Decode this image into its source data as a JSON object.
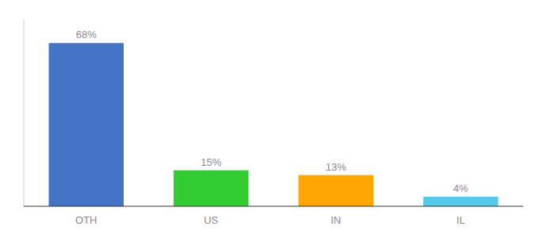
{
  "chart_data": {
    "type": "bar",
    "categories": [
      "OTH",
      "US",
      "IN",
      "IL"
    ],
    "values": [
      68,
      15,
      13,
      4
    ],
    "value_labels": [
      "68%",
      "15%",
      "13%",
      "4%"
    ],
    "colors": [
      "#4472C4",
      "#33CC33",
      "#FFA500",
      "#56C8E8"
    ],
    "ylim": [
      0,
      78
    ],
    "data_labels": true,
    "tick_labels": "x",
    "grid": false
  }
}
